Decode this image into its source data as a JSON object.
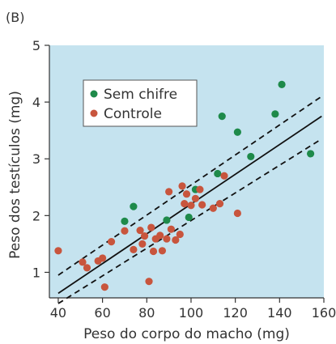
{
  "panel_label": "(B)",
  "chart_data": {
    "type": "scatter",
    "xlabel": "Peso do corpo do macho (mg)",
    "ylabel": "Peso dos testículos (mg)",
    "xlim": [
      36,
      160
    ],
    "ylim": [
      0.55,
      5
    ],
    "xticks": [
      40,
      60,
      80,
      100,
      120,
      140,
      160
    ],
    "yticks": [
      1,
      2,
      3,
      4,
      5
    ],
    "grid": false,
    "legend": {
      "placement": "upper-left"
    },
    "colors": {
      "background": "#c5e3ef",
      "sem_chifre": "#1e8a4a",
      "controle": "#c8553d",
      "lines": "#111111"
    },
    "series": [
      {
        "name": "Sem chifre",
        "color": "#1e8a4a",
        "points": [
          [
            70,
            1.9
          ],
          [
            74,
            2.16
          ],
          [
            89,
            1.92
          ],
          [
            99,
            1.97
          ],
          [
            102,
            2.46
          ],
          [
            112,
            2.74
          ],
          [
            114,
            3.75
          ],
          [
            121,
            3.47
          ],
          [
            127,
            3.04
          ],
          [
            138,
            3.79
          ],
          [
            141,
            4.31
          ],
          [
            154,
            3.09
          ]
        ]
      },
      {
        "name": "Controle",
        "color": "#c8553d",
        "points": [
          [
            40,
            1.38
          ],
          [
            51,
            1.18
          ],
          [
            53,
            1.08
          ],
          [
            58,
            1.2
          ],
          [
            60,
            1.25
          ],
          [
            61,
            0.74
          ],
          [
            64,
            1.54
          ],
          [
            70,
            1.73
          ],
          [
            74,
            1.4
          ],
          [
            77,
            1.74
          ],
          [
            78,
            1.5
          ],
          [
            79,
            1.64
          ],
          [
            81,
            0.84
          ],
          [
            82,
            1.79
          ],
          [
            83,
            1.37
          ],
          [
            84,
            1.59
          ],
          [
            86,
            1.65
          ],
          [
            87,
            1.38
          ],
          [
            89,
            1.59
          ],
          [
            90,
            2.42
          ],
          [
            91,
            1.76
          ],
          [
            93,
            1.57
          ],
          [
            95,
            1.67
          ],
          [
            96,
            2.52
          ],
          [
            97,
            2.21
          ],
          [
            98,
            2.38
          ],
          [
            100,
            2.18
          ],
          [
            102,
            2.3
          ],
          [
            104,
            2.46
          ],
          [
            105,
            2.19
          ],
          [
            110,
            2.13
          ],
          [
            113,
            2.21
          ],
          [
            115,
            2.7
          ],
          [
            121,
            2.04
          ]
        ]
      }
    ],
    "regression_line": {
      "x": [
        40,
        159
      ],
      "y": [
        0.63,
        3.75
      ]
    },
    "confidence_upper": {
      "x": [
        40,
        159
      ],
      "y": [
        0.95,
        4.1
      ]
    },
    "confidence_lower": {
      "x": [
        40,
        159
      ],
      "y": [
        0.45,
        3.35
      ]
    }
  }
}
